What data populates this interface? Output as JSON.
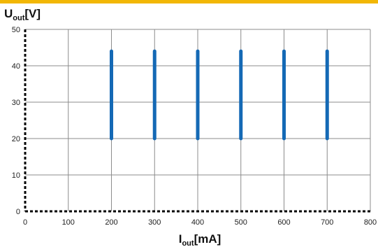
{
  "chart_data": {
    "type": "line",
    "ylabel": {
      "main": "U",
      "sub": "out",
      "unit": "[V]"
    },
    "xlabel": {
      "main": "I",
      "sub": "out",
      "unit": "[mA]"
    },
    "xlim": [
      0,
      800
    ],
    "ylim": [
      0,
      50
    ],
    "xticks": [
      0,
      100,
      200,
      300,
      400,
      500,
      600,
      700,
      800
    ],
    "yticks": [
      0,
      10,
      20,
      30,
      40,
      50
    ],
    "grid": true,
    "series": [
      {
        "x": [
          200,
          200
        ],
        "y": [
          20,
          44
        ]
      },
      {
        "x": [
          300,
          300
        ],
        "y": [
          20,
          44
        ]
      },
      {
        "x": [
          400,
          400
        ],
        "y": [
          20,
          44
        ]
      },
      {
        "x": [
          500,
          500
        ],
        "y": [
          20,
          44
        ]
      },
      {
        "x": [
          600,
          600
        ],
        "y": [
          20,
          44
        ]
      },
      {
        "x": [
          700,
          700
        ],
        "y": [
          20,
          44
        ]
      }
    ]
  },
  "colors": {
    "series": "#1469b5",
    "grid": "#8c8c8c",
    "axis": "#000000",
    "top_band": "#f2b705"
  }
}
